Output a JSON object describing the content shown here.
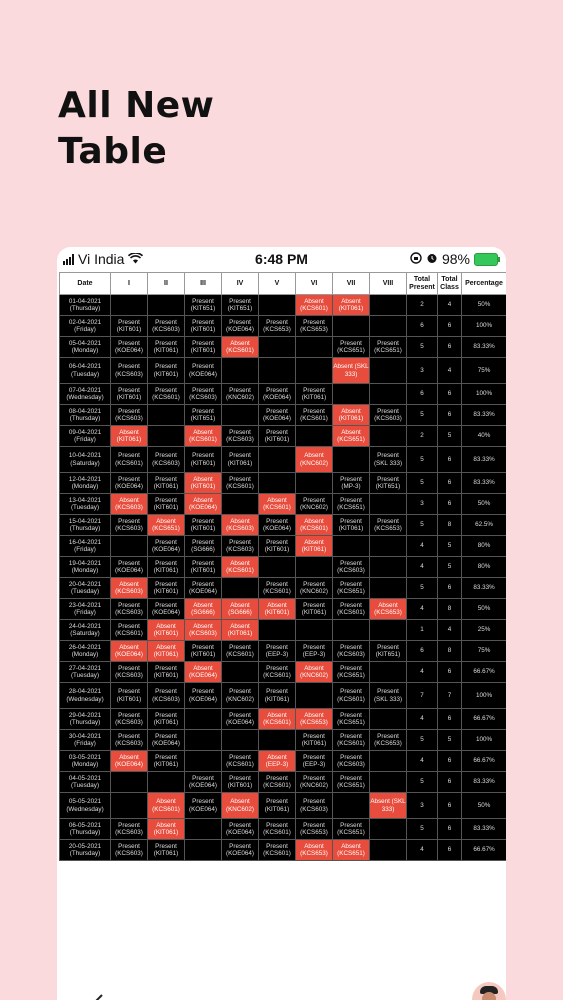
{
  "headline": {
    "line1": "All New",
    "line2": "Table"
  },
  "status_bar": {
    "carrier": "Vi India",
    "time": "6:48 PM",
    "battery": "98%"
  },
  "table": {
    "headers": [
      "Date",
      "I",
      "II",
      "III",
      "IV",
      "V",
      "VI",
      "VII",
      "VIII",
      "Total Present",
      "Total Class",
      "Percentage"
    ],
    "rows": [
      {
        "date": "01-04-2021",
        "day": "(Thursday)",
        "cells": [
          [
            "",
            0
          ],
          [
            "",
            0
          ],
          [
            "Present (KIT651)",
            0
          ],
          [
            "Present (KIT651)",
            0
          ],
          [
            "",
            0
          ],
          [
            "Absent (KCS601)",
            1
          ],
          [
            "Absent (KIT061)",
            1
          ],
          [
            "",
            0
          ]
        ],
        "present": "2",
        "total": "4",
        "pct": "50%"
      },
      {
        "date": "02-04-2021",
        "day": "(Friday)",
        "cells": [
          [
            "Present (KIT601)",
            0
          ],
          [
            "Present (KCS603)",
            0
          ],
          [
            "Present (KIT601)",
            0
          ],
          [
            "Present (KOE064)",
            0
          ],
          [
            "Present (KCS653)",
            0
          ],
          [
            "Present (KCS653)",
            0
          ],
          [
            "",
            0
          ],
          [
            "",
            0
          ]
        ],
        "present": "6",
        "total": "6",
        "pct": "100%"
      },
      {
        "date": "05-04-2021",
        "day": "(Monday)",
        "cells": [
          [
            "Present (KOE064)",
            0
          ],
          [
            "Present (KIT061)",
            0
          ],
          [
            "Present (KIT601)",
            0
          ],
          [
            "Absent (KCS601)",
            1
          ],
          [
            "",
            0
          ],
          [
            "",
            0
          ],
          [
            "Present (KCS651)",
            0
          ],
          [
            "Present (KCS651)",
            0
          ]
        ],
        "present": "5",
        "total": "6",
        "pct": "83.33%"
      },
      {
        "date": "06-04-2021",
        "day": "(Tuesday)",
        "cells": [
          [
            "Present (KCS603)",
            0
          ],
          [
            "Present (KIT601)",
            0
          ],
          [
            "Present (KOE064)",
            0
          ],
          [
            "",
            0
          ],
          [
            "",
            0
          ],
          [
            "",
            0
          ],
          [
            "Absent (SKL 333)",
            1
          ],
          [
            "",
            0
          ]
        ],
        "present": "3",
        "total": "4",
        "pct": "75%"
      },
      {
        "date": "07-04-2021",
        "day": "(Wednesday)",
        "cells": [
          [
            "Present (KIT601)",
            0
          ],
          [
            "Present (KCS601)",
            0
          ],
          [
            "Present (KCS603)",
            0
          ],
          [
            "Present (KNC602)",
            0
          ],
          [
            "Present (KOE064)",
            0
          ],
          [
            "Present (KIT061)",
            0
          ],
          [
            "",
            0
          ],
          [
            "",
            0
          ]
        ],
        "present": "6",
        "total": "6",
        "pct": "100%"
      },
      {
        "date": "08-04-2021",
        "day": "(Thursday)",
        "cells": [
          [
            "Present (KCS603)",
            0
          ],
          [
            "",
            0
          ],
          [
            "Present (KIT651)",
            0
          ],
          [
            "",
            0
          ],
          [
            "Present (KOE064)",
            0
          ],
          [
            "Present (KCS601)",
            0
          ],
          [
            "Absent (KIT061)",
            1
          ],
          [
            "Present (KCS603)",
            0
          ]
        ],
        "present": "5",
        "total": "6",
        "pct": "83.33%"
      },
      {
        "date": "09-04-2021",
        "day": "(Friday)",
        "cells": [
          [
            "Absent (KIT061)",
            1
          ],
          [
            "",
            0
          ],
          [
            "Absent (KCS601)",
            1
          ],
          [
            "Present (KCS603)",
            0
          ],
          [
            "Present (KIT601)",
            0
          ],
          [
            "",
            0
          ],
          [
            "Absent (KCS651)",
            1
          ],
          [
            "",
            0
          ]
        ],
        "present": "2",
        "total": "5",
        "pct": "40%"
      },
      {
        "date": "10-04-2021",
        "day": "(Saturday)",
        "cells": [
          [
            "Present (KCS601)",
            0
          ],
          [
            "Present (KCS603)",
            0
          ],
          [
            "Present (KIT601)",
            0
          ],
          [
            "Present (KIT061)",
            0
          ],
          [
            "",
            0
          ],
          [
            "Absent (KNC602)",
            1
          ],
          [
            "",
            0
          ],
          [
            "Present (SKL 333)",
            0
          ]
        ],
        "present": "5",
        "total": "6",
        "pct": "83.33%"
      },
      {
        "date": "12-04-2021",
        "day": "(Monday)",
        "cells": [
          [
            "Present (KOE064)",
            0
          ],
          [
            "Present (KIT061)",
            0
          ],
          [
            "Absent (KIT601)",
            1
          ],
          [
            "Present (KCS601)",
            0
          ],
          [
            "",
            0
          ],
          [
            "",
            0
          ],
          [
            "Present (MP-3)",
            0
          ],
          [
            "Present (KIT651)",
            0
          ]
        ],
        "present": "5",
        "total": "6",
        "pct": "83.33%"
      },
      {
        "date": "13-04-2021",
        "day": "(Tuesday)",
        "cells": [
          [
            "Absent (KCS603)",
            1
          ],
          [
            "Present (KIT601)",
            0
          ],
          [
            "Absent (KOE064)",
            1
          ],
          [
            "",
            0
          ],
          [
            "Absent (KCS601)",
            1
          ],
          [
            "Present (KNC602)",
            0
          ],
          [
            "Present (KCS651)",
            0
          ],
          [
            "",
            0
          ]
        ],
        "present": "3",
        "total": "6",
        "pct": "50%"
      },
      {
        "date": "15-04-2021",
        "day": "(Thursday)",
        "cells": [
          [
            "Present (KCS603)",
            0
          ],
          [
            "Absent (KCS651)",
            1
          ],
          [
            "Present (KIT601)",
            0
          ],
          [
            "Absent (KCS603)",
            1
          ],
          [
            "Present (KOE064)",
            0
          ],
          [
            "Absent (KCS601)",
            1
          ],
          [
            "Present (KIT061)",
            0
          ],
          [
            "Present (KCS653)",
            0
          ]
        ],
        "present": "5",
        "total": "8",
        "pct": "62.5%"
      },
      {
        "date": "16-04-2021",
        "day": "(Friday)",
        "cells": [
          [
            "",
            0
          ],
          [
            "Present (KOE064)",
            0
          ],
          [
            "Present (SG666)",
            0
          ],
          [
            "Present (KCS603)",
            0
          ],
          [
            "Present (KIT601)",
            0
          ],
          [
            "Absent (KIT061)",
            1
          ],
          [
            "",
            0
          ],
          [
            "",
            0
          ]
        ],
        "present": "4",
        "total": "5",
        "pct": "80%"
      },
      {
        "date": "19-04-2021",
        "day": "(Monday)",
        "cells": [
          [
            "Present (KOE064)",
            0
          ],
          [
            "Present (KIT061)",
            0
          ],
          [
            "Present (KIT601)",
            0
          ],
          [
            "Absent (KCS601)",
            1
          ],
          [
            "",
            0
          ],
          [
            "",
            0
          ],
          [
            "Present (KCS603)",
            0
          ],
          [
            "",
            0
          ]
        ],
        "present": "4",
        "total": "5",
        "pct": "80%"
      },
      {
        "date": "20-04-2021",
        "day": "(Tuesday)",
        "cells": [
          [
            "Absent (KCS603)",
            1
          ],
          [
            "Present (KIT601)",
            0
          ],
          [
            "Present (KOE064)",
            0
          ],
          [
            "",
            0
          ],
          [
            "Present (KCS601)",
            0
          ],
          [
            "Present (KNC602)",
            0
          ],
          [
            "Present (KCS651)",
            0
          ],
          [
            "",
            0
          ]
        ],
        "present": "5",
        "total": "6",
        "pct": "83.33%"
      },
      {
        "date": "23-04-2021",
        "day": "(Friday)",
        "cells": [
          [
            "Present (KCS603)",
            0
          ],
          [
            "Present (KOE064)",
            0
          ],
          [
            "Absent (SG666)",
            1
          ],
          [
            "Absent (SG666)",
            1
          ],
          [
            "Absent (KIT601)",
            1
          ],
          [
            "Present (KIT061)",
            0
          ],
          [
            "Present (KCS601)",
            0
          ],
          [
            "Absent (KCS653)",
            1
          ]
        ],
        "present": "4",
        "total": "8",
        "pct": "50%"
      },
      {
        "date": "24-04-2021",
        "day": "(Saturday)",
        "cells": [
          [
            "Present (KCS601)",
            0
          ],
          [
            "Absent (KIT601)",
            1
          ],
          [
            "Absent (KCS603)",
            1
          ],
          [
            "Absent (KIT061)",
            1
          ],
          [
            "",
            0
          ],
          [
            "",
            0
          ],
          [
            "",
            0
          ],
          [
            "",
            0
          ]
        ],
        "present": "1",
        "total": "4",
        "pct": "25%"
      },
      {
        "date": "26-04-2021",
        "day": "(Monday)",
        "cells": [
          [
            "Absent (KOE064)",
            1
          ],
          [
            "Absent (KIT061)",
            1
          ],
          [
            "Present (KIT601)",
            0
          ],
          [
            "Present (KCS601)",
            0
          ],
          [
            "Present (EEP-3)",
            0
          ],
          [
            "Present (EEP-3)",
            0
          ],
          [
            "Present (KCS603)",
            0
          ],
          [
            "Present (KIT651)",
            0
          ]
        ],
        "present": "6",
        "total": "8",
        "pct": "75%"
      },
      {
        "date": "27-04-2021",
        "day": "(Tuesday)",
        "cells": [
          [
            "Present (KCS603)",
            0
          ],
          [
            "Present (KIT601)",
            0
          ],
          [
            "Absent (KOE064)",
            1
          ],
          [
            "",
            0
          ],
          [
            "Present (KCS601)",
            0
          ],
          [
            "Absent (KNC602)",
            1
          ],
          [
            "Present (KCS651)",
            0
          ],
          [
            "",
            0
          ]
        ],
        "present": "4",
        "total": "6",
        "pct": "66.67%"
      },
      {
        "date": "28-04-2021",
        "day": "(Wednesday)",
        "cells": [
          [
            "Present (KIT601)",
            0
          ],
          [
            "Present (KCS603)",
            0
          ],
          [
            "Present (KOE064)",
            0
          ],
          [
            "Present (KNC602)",
            0
          ],
          [
            "Present (KIT061)",
            0
          ],
          [
            "",
            0
          ],
          [
            "Present (KCS601)",
            0
          ],
          [
            "Present (SKL 333)",
            0
          ]
        ],
        "present": "7",
        "total": "7",
        "pct": "100%"
      },
      {
        "date": "29-04-2021",
        "day": "(Thursday)",
        "cells": [
          [
            "Present (KCS603)",
            0
          ],
          [
            "Present (KIT061)",
            0
          ],
          [
            "",
            0
          ],
          [
            "Present (KOE064)",
            0
          ],
          [
            "Absent (KCS601)",
            1
          ],
          [
            "Absent (KCS653)",
            1
          ],
          [
            "Present (KCS651)",
            0
          ],
          [
            "",
            0
          ]
        ],
        "present": "4",
        "total": "6",
        "pct": "66.67%"
      },
      {
        "date": "30-04-2021",
        "day": "(Friday)",
        "cells": [
          [
            "Present (KCS603)",
            0
          ],
          [
            "Present (KOE064)",
            0
          ],
          [
            "",
            0
          ],
          [
            "",
            0
          ],
          [
            "",
            0
          ],
          [
            "Present (KIT061)",
            0
          ],
          [
            "Present (KCS601)",
            0
          ],
          [
            "Present (KCS653)",
            0
          ]
        ],
        "present": "5",
        "total": "5",
        "pct": "100%"
      },
      {
        "date": "03-05-2021",
        "day": "(Monday)",
        "cells": [
          [
            "Absent (KOE064)",
            1
          ],
          [
            "Present (KIT061)",
            0
          ],
          [
            "",
            0
          ],
          [
            "Present (KCS601)",
            0
          ],
          [
            "Absent (EEP-3)",
            1
          ],
          [
            "Present (EEP-3)",
            0
          ],
          [
            "Present (KCS603)",
            0
          ],
          [
            "",
            0
          ]
        ],
        "present": "4",
        "total": "6",
        "pct": "66.67%"
      },
      {
        "date": "04-05-2021",
        "day": "(Tuesday)",
        "cells": [
          [
            "",
            0
          ],
          [
            "",
            0
          ],
          [
            "Present (KOE064)",
            0
          ],
          [
            "Present (KIT601)",
            0
          ],
          [
            "Present (KCS601)",
            0
          ],
          [
            "Present (KNC602)",
            0
          ],
          [
            "Present (KCS651)",
            0
          ],
          [
            "",
            0
          ]
        ],
        "present": "5",
        "total": "6",
        "pct": "83.33%"
      },
      {
        "date": "05-05-2021",
        "day": "(Wednesday)",
        "cells": [
          [
            "",
            0
          ],
          [
            "Absent (KCS601)",
            1
          ],
          [
            "Present (KOE064)",
            0
          ],
          [
            "Absent (KNC602)",
            1
          ],
          [
            "Present (KIT061)",
            0
          ],
          [
            "Present (KCS603)",
            0
          ],
          [
            "",
            0
          ],
          [
            "Absent (SKL 333)",
            1
          ]
        ],
        "present": "3",
        "total": "6",
        "pct": "50%"
      },
      {
        "date": "06-05-2021",
        "day": "(Thursday)",
        "cells": [
          [
            "Present (KCS603)",
            0
          ],
          [
            "Absent (KIT061)",
            1
          ],
          [
            "",
            0
          ],
          [
            "Present (KOE064)",
            0
          ],
          [
            "Present (KCS601)",
            0
          ],
          [
            "Present (KCS653)",
            0
          ],
          [
            "Present (KCS651)",
            0
          ],
          [
            "",
            0
          ]
        ],
        "present": "5",
        "total": "6",
        "pct": "83.33%"
      },
      {
        "date": "20-05-2021",
        "day": "(Thursday)",
        "cells": [
          [
            "Present (KCS603)",
            0
          ],
          [
            "Present (KIT061)",
            0
          ],
          [
            "",
            0
          ],
          [
            "Present (KOE064)",
            0
          ],
          [
            "Present (KCS601)",
            0
          ],
          [
            "Absent (KCS653)",
            1
          ],
          [
            "Absent (KCS651)",
            1
          ],
          [
            "",
            0
          ]
        ],
        "present": "4",
        "total": "6",
        "pct": "66.67%"
      }
    ]
  },
  "nav": {
    "back_icon": "chevron-left-icon",
    "avatar": "avatar"
  },
  "colors": {
    "absent": "#e74c3c",
    "present_bg": "#000000",
    "page_bg": "#fadadd"
  }
}
